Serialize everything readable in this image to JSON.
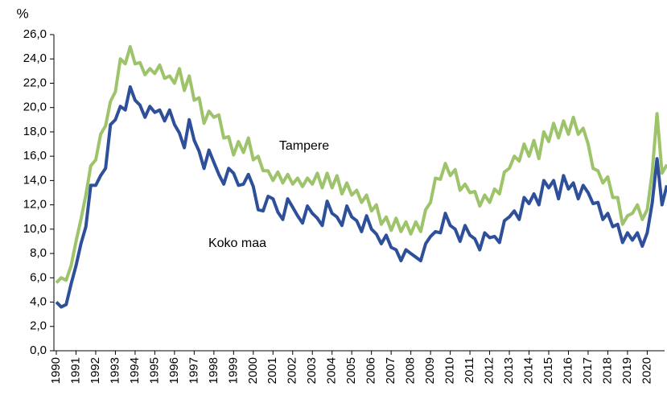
{
  "chart_data": {
    "type": "line",
    "ylabel": "%",
    "categories": [
      "1990",
      null,
      null,
      null,
      "1991",
      null,
      null,
      null,
      "1992",
      null,
      null,
      null,
      "1993",
      null,
      null,
      null,
      "1994",
      null,
      null,
      null,
      "1995",
      null,
      null,
      null,
      "1996",
      null,
      null,
      null,
      "1997",
      null,
      null,
      null,
      "1998",
      null,
      null,
      null,
      "1999",
      null,
      null,
      null,
      "2000",
      null,
      null,
      null,
      "2001",
      null,
      null,
      null,
      "2002",
      null,
      null,
      null,
      "2003",
      null,
      null,
      null,
      "2004",
      null,
      null,
      null,
      "2005",
      null,
      null,
      null,
      "2006",
      null,
      null,
      null,
      "2007",
      null,
      null,
      null,
      "2008",
      null,
      null,
      null,
      "2009",
      null,
      null,
      null,
      "2010",
      null,
      null,
      null,
      "2011",
      null,
      null,
      null,
      "2012",
      null,
      null,
      null,
      "2013",
      null,
      null,
      null,
      "2014",
      null,
      null,
      null,
      "2015",
      null,
      null,
      null,
      "2016",
      null,
      null,
      null,
      "2017",
      null,
      null,
      null,
      "2018",
      null,
      null,
      null,
      "2019",
      null,
      null,
      null,
      "2020",
      null,
      null,
      null,
      null
    ],
    "series": [
      {
        "name": "Tampere",
        "color": "#9dc46a",
        "values": [
          5.6,
          6.0,
          5.8,
          7.0,
          9.0,
          10.8,
          12.8,
          15.2,
          15.7,
          17.8,
          18.5,
          20.5,
          21.3,
          24.0,
          23.6,
          25.0,
          23.6,
          23.7,
          22.7,
          23.2,
          22.8,
          23.5,
          22.4,
          22.6,
          22.0,
          23.2,
          21.4,
          22.6,
          20.6,
          20.8,
          18.7,
          19.7,
          19.2,
          19.4,
          17.5,
          17.6,
          16.1,
          17.2,
          16.3,
          17.5,
          15.7,
          16.0,
          14.8,
          14.8,
          14.0,
          14.7,
          13.8,
          14.5,
          13.7,
          14.2,
          13.5,
          14.2,
          13.7,
          14.6,
          13.4,
          14.6,
          13.4,
          14.4,
          12.9,
          13.8,
          12.8,
          13.2,
          12.2,
          12.8,
          11.5,
          12.0,
          10.4,
          11.0,
          9.9,
          10.9,
          9.8,
          10.6,
          9.6,
          10.6,
          9.8,
          11.6,
          12.2,
          14.2,
          14.1,
          15.4,
          14.4,
          14.9,
          13.2,
          13.7,
          13.0,
          13.1,
          11.9,
          12.8,
          12.2,
          13.3,
          12.9,
          14.7,
          15.0,
          16.0,
          15.6,
          17.0,
          16.0,
          17.3,
          15.8,
          18.0,
          17.2,
          18.7,
          17.5,
          18.9,
          17.8,
          19.2,
          17.8,
          18.3,
          17.0,
          15.0,
          14.8,
          13.8,
          14.3,
          12.6,
          12.6,
          10.4,
          11.1,
          11.3,
          12.0,
          10.8,
          11.6,
          14.6,
          19.5,
          14.6,
          15.3
        ]
      },
      {
        "name": "Koko maa",
        "color": "#2e4f9a",
        "values": [
          4.0,
          3.6,
          3.8,
          5.5,
          7.0,
          8.8,
          10.2,
          13.6,
          13.6,
          14.4,
          15.0,
          18.6,
          19.0,
          20.1,
          19.8,
          21.7,
          20.6,
          20.2,
          19.2,
          20.1,
          19.6,
          19.8,
          18.9,
          19.8,
          18.6,
          17.9,
          16.7,
          19.0,
          17.3,
          16.4,
          15.0,
          16.5,
          15.5,
          14.5,
          13.7,
          15.0,
          14.6,
          13.6,
          13.7,
          14.5,
          13.5,
          11.6,
          11.5,
          12.7,
          12.5,
          11.4,
          10.8,
          12.5,
          11.8,
          11.1,
          10.5,
          11.9,
          11.3,
          10.9,
          10.3,
          12.3,
          11.3,
          11.0,
          10.3,
          11.9,
          11.0,
          10.7,
          9.8,
          11.1,
          10.0,
          9.6,
          8.8,
          9.5,
          8.5,
          8.3,
          7.4,
          8.3,
          8.0,
          7.7,
          7.4,
          8.8,
          9.4,
          9.8,
          9.7,
          11.3,
          10.3,
          10.0,
          9.0,
          10.3,
          9.5,
          9.2,
          8.3,
          9.7,
          9.3,
          9.4,
          8.9,
          10.7,
          11.0,
          11.5,
          10.8,
          12.6,
          12.1,
          12.9,
          12.0,
          14.0,
          13.4,
          14.0,
          12.5,
          14.4,
          13.3,
          13.8,
          12.5,
          13.6,
          13.0,
          12.1,
          12.2,
          10.8,
          11.3,
          10.2,
          10.4,
          8.9,
          9.7,
          9.1,
          9.7,
          8.6,
          9.7,
          12.1,
          15.8,
          12.0,
          13.6
        ]
      }
    ],
    "ylim": [
      0,
      26
    ],
    "yticks": [
      {
        "value": 0,
        "label": "0,0"
      },
      {
        "value": 2,
        "label": "2,0"
      },
      {
        "value": 4,
        "label": "4,0"
      },
      {
        "value": 6,
        "label": "6,0"
      },
      {
        "value": 8,
        "label": "8,0"
      },
      {
        "value": 10,
        "label": "10,0"
      },
      {
        "value": 12,
        "label": "12,0"
      },
      {
        "value": 14,
        "label": "14,0"
      },
      {
        "value": 16,
        "label": "16,0"
      },
      {
        "value": 18,
        "label": "18,0"
      },
      {
        "value": 20,
        "label": "20,0"
      },
      {
        "value": 22,
        "label": "22,0"
      },
      {
        "value": 24,
        "label": "24,0"
      },
      {
        "value": 26,
        "label": "26,0"
      }
    ],
    "grid": false
  }
}
